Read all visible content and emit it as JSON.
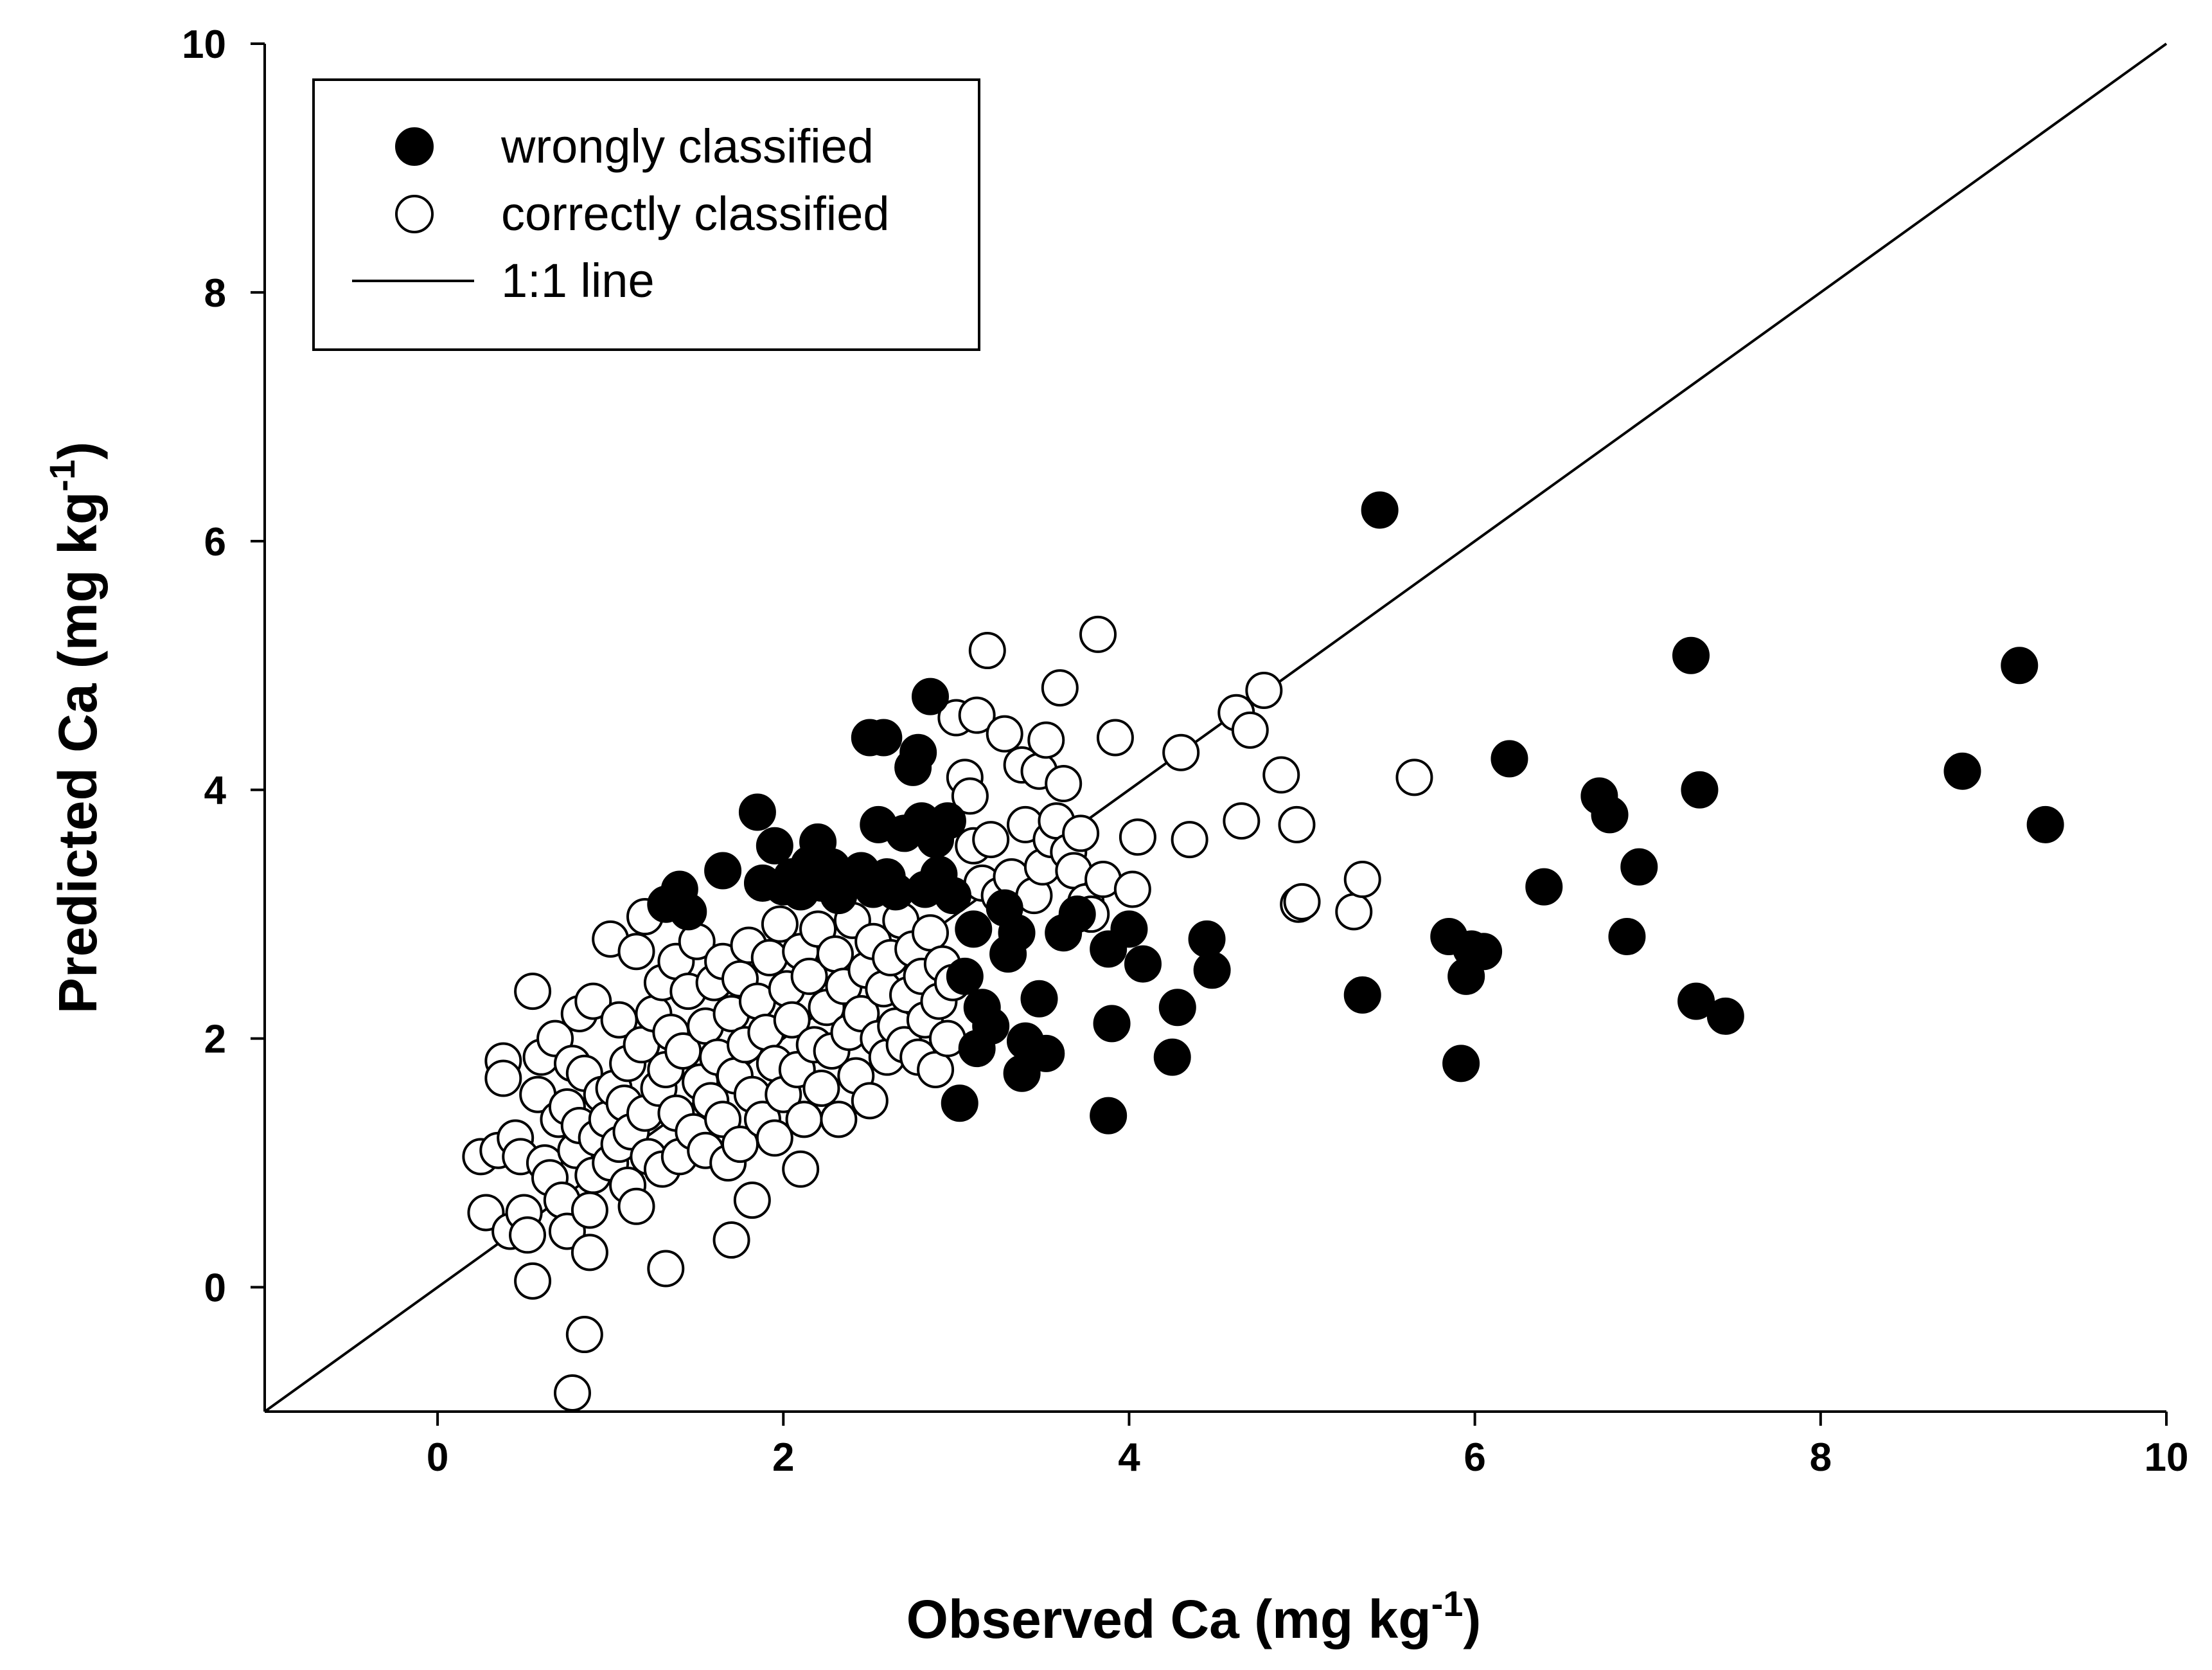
{
  "chart_data": {
    "type": "scatter",
    "title": "",
    "xlabel_main": "Observed Ca (mg kg",
    "xlabel_sup": "-1",
    "xlabel_close": ")",
    "ylabel_main": "Predicted Ca (mg kg",
    "ylabel_sup": "-1",
    "ylabel_close": ")",
    "xlim": [
      -1,
      10
    ],
    "ylim": [
      -1,
      10
    ],
    "xticks": [
      0,
      2,
      4,
      6,
      8,
      10
    ],
    "yticks": [
      0,
      2,
      4,
      6,
      8,
      10
    ],
    "xtick_labels": [
      "0",
      "2",
      "4",
      "6",
      "8",
      "10"
    ],
    "ytick_labels": [
      "0",
      "2",
      "4",
      "6",
      "8",
      "10"
    ],
    "grid": false,
    "legend_position": "top-left",
    "legend": {
      "wrong": "wrongly classified",
      "correct": "correctly classified",
      "line": "1:1 line"
    },
    "reference_line": {
      "name": "1:1 line",
      "from": [
        -1,
        -1
      ],
      "to": [
        10,
        10
      ]
    },
    "series": [
      {
        "name": "correctly classified",
        "marker": "open-circle",
        "points": [
          [
            0.25,
            1.05
          ],
          [
            0.28,
            0.6
          ],
          [
            0.35,
            1.1
          ],
          [
            0.38,
            1.82
          ],
          [
            0.38,
            1.68
          ],
          [
            0.42,
            0.45
          ],
          [
            0.45,
            1.2
          ],
          [
            0.48,
            1.05
          ],
          [
            0.5,
            0.6
          ],
          [
            0.52,
            0.42
          ],
          [
            0.55,
            2.38
          ],
          [
            0.55,
            0.05
          ],
          [
            0.58,
            1.55
          ],
          [
            0.6,
            1.85
          ],
          [
            0.62,
            1.0
          ],
          [
            0.65,
            0.88
          ],
          [
            0.68,
            2.0
          ],
          [
            0.7,
            1.35
          ],
          [
            0.72,
            0.7
          ],
          [
            0.75,
            1.45
          ],
          [
            0.75,
            0.45
          ],
          [
            0.78,
            1.8
          ],
          [
            0.78,
            -0.85
          ],
          [
            0.8,
            1.1
          ],
          [
            0.82,
            1.3
          ],
          [
            0.82,
            2.2
          ],
          [
            0.85,
            1.72
          ],
          [
            0.85,
            -0.38
          ],
          [
            0.88,
            0.62
          ],
          [
            0.88,
            0.28
          ],
          [
            0.9,
            2.3
          ],
          [
            0.9,
            0.9
          ],
          [
            0.92,
            1.2
          ],
          [
            0.95,
            1.55
          ],
          [
            0.98,
            1.35
          ],
          [
            1.0,
            1.0
          ],
          [
            1.0,
            2.8
          ],
          [
            1.02,
            1.6
          ],
          [
            1.05,
            1.15
          ],
          [
            1.05,
            2.15
          ],
          [
            1.08,
            1.48
          ],
          [
            1.1,
            0.82
          ],
          [
            1.1,
            1.8
          ],
          [
            1.12,
            1.25
          ],
          [
            1.15,
            2.7
          ],
          [
            1.15,
            0.65
          ],
          [
            1.18,
            1.95
          ],
          [
            1.2,
            1.4
          ],
          [
            1.2,
            2.98
          ],
          [
            1.22,
            1.05
          ],
          [
            1.25,
            2.2
          ],
          [
            1.28,
            1.6
          ],
          [
            1.3,
            0.95
          ],
          [
            1.3,
            2.45
          ],
          [
            1.32,
            1.75
          ],
          [
            1.32,
            0.15
          ],
          [
            1.35,
            2.05
          ],
          [
            1.38,
            1.4
          ],
          [
            1.38,
            2.62
          ],
          [
            1.4,
            1.05
          ],
          [
            1.42,
            1.9
          ],
          [
            1.45,
            2.38
          ],
          [
            1.48,
            1.25
          ],
          [
            1.5,
            2.78
          ],
          [
            1.52,
            1.65
          ],
          [
            1.55,
            1.1
          ],
          [
            1.55,
            2.1
          ],
          [
            1.58,
            1.5
          ],
          [
            1.6,
            2.45
          ],
          [
            1.62,
            1.85
          ],
          [
            1.65,
            1.35
          ],
          [
            1.65,
            2.62
          ],
          [
            1.68,
            1.0
          ],
          [
            1.7,
            2.2
          ],
          [
            1.7,
            0.38
          ],
          [
            1.72,
            1.7
          ],
          [
            1.75,
            2.48
          ],
          [
            1.75,
            1.15
          ],
          [
            1.78,
            1.95
          ],
          [
            1.8,
            2.75
          ],
          [
            1.82,
            0.7
          ],
          [
            1.82,
            1.55
          ],
          [
            1.85,
            2.3
          ],
          [
            1.88,
            1.35
          ],
          [
            1.9,
            2.05
          ],
          [
            1.92,
            2.65
          ],
          [
            1.95,
            1.8
          ],
          [
            1.95,
            1.2
          ],
          [
            1.98,
            2.92
          ],
          [
            2.0,
            1.55
          ],
          [
            2.02,
            2.4
          ],
          [
            2.05,
            2.15
          ],
          [
            2.08,
            1.75
          ],
          [
            2.1,
            2.7
          ],
          [
            2.1,
            0.95
          ],
          [
            2.12,
            1.35
          ],
          [
            2.15,
            2.5
          ],
          [
            2.18,
            1.95
          ],
          [
            2.2,
            2.88
          ],
          [
            2.22,
            1.6
          ],
          [
            2.25,
            2.25
          ],
          [
            2.28,
            1.9
          ],
          [
            2.3,
            2.68
          ],
          [
            2.32,
            1.35
          ],
          [
            2.35,
            2.42
          ],
          [
            2.38,
            2.05
          ],
          [
            2.4,
            2.95
          ],
          [
            2.42,
            1.7
          ],
          [
            2.45,
            2.2
          ],
          [
            2.48,
            2.55
          ],
          [
            2.5,
            1.5
          ],
          [
            2.52,
            2.78
          ],
          [
            2.55,
            2.0
          ],
          [
            2.58,
            2.4
          ],
          [
            2.6,
            1.85
          ],
          [
            2.62,
            2.65
          ],
          [
            2.65,
            2.1
          ],
          [
            2.68,
            2.95
          ],
          [
            2.7,
            1.95
          ],
          [
            2.72,
            2.35
          ],
          [
            2.75,
            2.72
          ],
          [
            2.78,
            1.85
          ],
          [
            2.8,
            2.5
          ],
          [
            2.82,
            2.15
          ],
          [
            2.85,
            2.85
          ],
          [
            2.88,
            1.75
          ],
          [
            2.9,
            2.3
          ],
          [
            2.92,
            2.6
          ],
          [
            2.95,
            2.0
          ],
          [
            2.98,
            2.45
          ],
          [
            3.0,
            4.58
          ],
          [
            3.05,
            4.1
          ],
          [
            3.08,
            3.95
          ],
          [
            3.1,
            3.55
          ],
          [
            3.12,
            4.6
          ],
          [
            3.15,
            3.25
          ],
          [
            3.18,
            5.12
          ],
          [
            3.2,
            3.6
          ],
          [
            3.25,
            3.15
          ],
          [
            3.28,
            4.45
          ],
          [
            3.32,
            3.3
          ],
          [
            3.38,
            4.2
          ],
          [
            3.4,
            3.72
          ],
          [
            3.45,
            3.15
          ],
          [
            3.48,
            4.15
          ],
          [
            3.5,
            3.38
          ],
          [
            3.52,
            4.4
          ],
          [
            3.55,
            3.6
          ],
          [
            3.58,
            3.75
          ],
          [
            3.6,
            4.82
          ],
          [
            3.62,
            4.05
          ],
          [
            3.65,
            3.5
          ],
          [
            3.68,
            3.35
          ],
          [
            3.72,
            3.65
          ],
          [
            3.75,
            3.1
          ],
          [
            3.78,
            3.0
          ],
          [
            3.82,
            5.25
          ],
          [
            3.85,
            3.28
          ],
          [
            3.92,
            4.42
          ],
          [
            4.02,
            3.2
          ],
          [
            4.05,
            3.62
          ],
          [
            4.3,
            4.3
          ],
          [
            4.35,
            3.6
          ],
          [
            4.62,
            4.62
          ],
          [
            4.65,
            3.75
          ],
          [
            4.7,
            4.48
          ],
          [
            4.78,
            4.8
          ],
          [
            4.88,
            4.12
          ],
          [
            4.97,
            3.72
          ],
          [
            4.98,
            3.08
          ],
          [
            5.0,
            3.1
          ],
          [
            5.3,
            3.02
          ],
          [
            5.35,
            3.28
          ],
          [
            5.65,
            4.1
          ]
        ]
      },
      {
        "name": "wrongly classified",
        "marker": "filled-circle",
        "points": [
          [
            1.32,
            3.08
          ],
          [
            1.4,
            3.2
          ],
          [
            1.45,
            3.02
          ],
          [
            1.65,
            3.35
          ],
          [
            1.85,
            3.82
          ],
          [
            1.88,
            3.25
          ],
          [
            1.95,
            3.55
          ],
          [
            2.0,
            3.22
          ],
          [
            2.05,
            3.3
          ],
          [
            2.1,
            3.18
          ],
          [
            2.15,
            3.4
          ],
          [
            2.2,
            3.58
          ],
          [
            2.22,
            3.25
          ],
          [
            2.28,
            3.38
          ],
          [
            2.32,
            3.15
          ],
          [
            2.38,
            3.28
          ],
          [
            2.45,
            3.35
          ],
          [
            2.5,
            4.42
          ],
          [
            2.52,
            3.2
          ],
          [
            2.55,
            3.72
          ],
          [
            2.58,
            4.42
          ],
          [
            2.6,
            3.3
          ],
          [
            2.65,
            3.18
          ],
          [
            2.7,
            3.65
          ],
          [
            2.75,
            4.18
          ],
          [
            2.78,
            4.3
          ],
          [
            2.8,
            3.75
          ],
          [
            2.82,
            3.2
          ],
          [
            2.85,
            4.75
          ],
          [
            2.88,
            3.6
          ],
          [
            2.9,
            3.32
          ],
          [
            2.95,
            3.75
          ],
          [
            2.98,
            3.15
          ],
          [
            3.02,
            1.48
          ],
          [
            3.05,
            2.5
          ],
          [
            3.1,
            2.88
          ],
          [
            3.12,
            1.92
          ],
          [
            3.15,
            2.25
          ],
          [
            3.2,
            2.1
          ],
          [
            3.28,
            3.05
          ],
          [
            3.3,
            2.68
          ],
          [
            3.35,
            2.85
          ],
          [
            3.38,
            1.72
          ],
          [
            3.4,
            1.98
          ],
          [
            3.48,
            2.32
          ],
          [
            3.52,
            1.88
          ],
          [
            3.62,
            2.85
          ],
          [
            3.7,
            3.0
          ],
          [
            3.88,
            2.72
          ],
          [
            3.88,
            1.38
          ],
          [
            3.9,
            2.12
          ],
          [
            4.0,
            2.88
          ],
          [
            4.08,
            2.6
          ],
          [
            4.25,
            1.85
          ],
          [
            4.28,
            2.25
          ],
          [
            4.45,
            2.8
          ],
          [
            4.48,
            2.55
          ],
          [
            5.35,
            2.35
          ],
          [
            5.45,
            6.25
          ],
          [
            5.85,
            2.82
          ],
          [
            5.92,
            1.8
          ],
          [
            5.95,
            2.5
          ],
          [
            5.98,
            2.72
          ],
          [
            6.05,
            2.7
          ],
          [
            6.2,
            4.25
          ],
          [
            6.4,
            3.22
          ],
          [
            6.72,
            3.95
          ],
          [
            6.78,
            3.8
          ],
          [
            6.88,
            2.82
          ],
          [
            6.95,
            3.38
          ],
          [
            7.25,
            5.08
          ],
          [
            7.28,
            2.3
          ],
          [
            7.3,
            4.0
          ],
          [
            7.45,
            2.18
          ],
          [
            8.82,
            4.15
          ],
          [
            9.15,
            5.0
          ],
          [
            9.3,
            3.72
          ]
        ]
      }
    ]
  }
}
